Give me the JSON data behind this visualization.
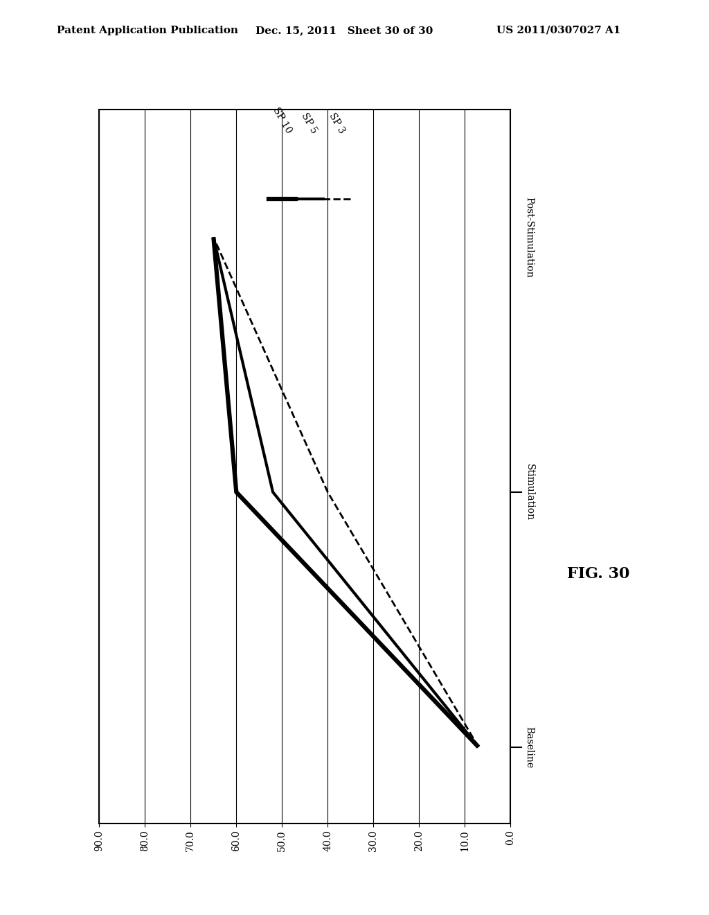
{
  "header_left": "Patent Application Publication",
  "header_mid": "Dec. 15, 2011   Sheet 30 of 30",
  "header_right": "US 2011/0307027 A1",
  "fig_label": "FIG. 30",
  "xlim": [
    0,
    90
  ],
  "xticks": [
    0.0,
    10.0,
    20.0,
    30.0,
    40.0,
    50.0,
    60.0,
    70.0,
    80.0,
    90.0
  ],
  "ytick_positions": [
    0,
    1,
    2
  ],
  "ytick_labels": [
    "Post-Stimulation",
    "Stimulation",
    "Baseline"
  ],
  "n_vertical_gridlines": 10,
  "series": [
    {
      "label": "SP 10",
      "y": [
        0,
        1,
        2
      ],
      "x": [
        65,
        47,
        5
      ],
      "linewidth": 4.5,
      "linestyle": "solid",
      "color": "#000000"
    },
    {
      "label": "SP 5",
      "y": [
        0,
        1,
        2
      ],
      "x": [
        65,
        47,
        5
      ],
      "linewidth": 3.0,
      "linestyle": "solid",
      "color": "#000000"
    },
    {
      "label": "SP 3",
      "y": [
        0,
        1,
        2
      ],
      "x": [
        65,
        47,
        5
      ],
      "linewidth": 2.0,
      "linestyle": "dashed",
      "color": "#000000"
    }
  ],
  "background_color": "#ffffff",
  "legend_fontsize": 11,
  "tick_fontsize": 10,
  "header_fontsize": 11
}
